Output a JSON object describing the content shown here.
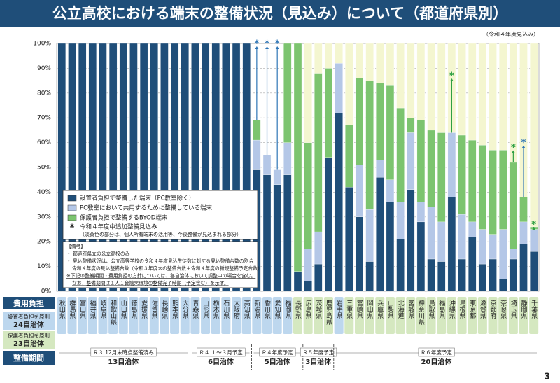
{
  "chart_data": {
    "type": "bar",
    "title": "公立高校における端末の整備状況（見込み）について（都道府県別）",
    "subtitle": "（令和４年度見込み）",
    "categories": [
      "秋田県",
      "群馬県",
      "富山県",
      "福井県",
      "岐阜県",
      "和歌山県",
      "山口県",
      "徳島県",
      "愛媛県",
      "佐賀県",
      "長崎県",
      "熊本県",
      "大分県",
      "青森県",
      "山形県",
      "栃木県",
      "石川県",
      "大阪府",
      "高知県",
      "新潟県",
      "香川県",
      "愛知県",
      "福岡県",
      "長野県",
      "広島県",
      "茨城県",
      "鹿児島県",
      "岩手県",
      "三重県",
      "宮崎県",
      "岡山県",
      "兵庫県",
      "山梨県",
      "北海道",
      "宮城県",
      "神奈川県",
      "鳥取県",
      "福島県",
      "沖縄県",
      "島根県",
      "東京都",
      "滋賀県",
      "京都府",
      "奈良県",
      "埼玉県",
      "静岡県",
      "千葉県"
    ],
    "series": [
      {
        "name": "設置者負担で整備した端末（PC教室除く）",
        "color": "#1f4e79",
        "values": [
          100,
          100,
          100,
          100,
          100,
          100,
          100,
          100,
          100,
          100,
          100,
          100,
          100,
          100,
          100,
          100,
          100,
          100,
          100,
          49,
          47,
          43,
          47,
          8,
          4,
          11,
          54,
          72,
          42,
          30,
          12,
          46,
          36,
          21,
          41,
          28,
          13,
          12,
          38,
          13,
          22,
          11,
          13,
          5,
          13,
          19,
          16
        ]
      },
      {
        "name": "PC教室において共用するために整備している端末",
        "color": "#b4c7e7",
        "values": [
          0,
          0,
          0,
          0,
          0,
          0,
          0,
          0,
          0,
          0,
          0,
          0,
          0,
          0,
          0,
          0,
          0,
          0,
          0,
          12,
          8,
          6,
          13,
          0,
          13,
          13,
          0,
          20,
          0,
          21,
          21,
          7,
          9,
          15,
          23,
          8,
          21,
          16,
          26,
          18,
          6,
          14,
          10,
          20,
          4,
          9,
          9
        ]
      },
      {
        "name": "保護者負担で整備するBYOD端末",
        "color": "#7cc46f",
        "values": [
          0,
          0,
          0,
          0,
          0,
          0,
          0,
          0,
          0,
          0,
          0,
          0,
          0,
          0,
          0,
          0,
          0,
          0,
          0,
          8,
          0,
          0,
          40,
          92,
          43,
          64,
          36,
          0,
          25,
          35,
          52,
          31,
          38,
          38,
          6,
          33,
          31,
          36,
          0,
          32,
          33,
          34,
          34,
          32,
          35,
          10,
          1
        ]
      },
      {
        "color": "#f4f6d0",
        "values": [
          0,
          0,
          0,
          0,
          0,
          0,
          0,
          0,
          0,
          0,
          0,
          0,
          0,
          0,
          0,
          0,
          0,
          0,
          0,
          0,
          0,
          0,
          0,
          0,
          40,
          12,
          10,
          8,
          33,
          14,
          15,
          16,
          17,
          26,
          30,
          31,
          35,
          36,
          36,
          37,
          39,
          41,
          43,
          43,
          48,
          62,
          74
        ]
      }
    ],
    "marker_values": [
      null,
      null,
      null,
      null,
      null,
      null,
      null,
      null,
      null,
      null,
      null,
      null,
      null,
      null,
      null,
      null,
      null,
      null,
      null,
      100,
      100,
      100,
      null,
      null,
      null,
      null,
      null,
      null,
      null,
      null,
      null,
      null,
      null,
      null,
      null,
      null,
      null,
      null,
      87,
      null,
      null,
      null,
      null,
      null,
      58,
      60,
      27
    ],
    "marker_colors": [
      null,
      null,
      null,
      null,
      null,
      null,
      null,
      null,
      null,
      null,
      null,
      null,
      null,
      null,
      null,
      null,
      null,
      null,
      null,
      "#2e75b6",
      "#2e75b6",
      "#2e75b6",
      null,
      null,
      null,
      null,
      null,
      null,
      null,
      null,
      null,
      null,
      null,
      null,
      null,
      null,
      null,
      null,
      "#2ea043",
      null,
      null,
      null,
      null,
      null,
      "#2ea043",
      "#2e75b6",
      "#2ea043"
    ],
    "marker_symbol": "*",
    "marker_legend": "令和４年度中追加整備見込み",
    "legend_note": "（淡黄色の部分は、個人所有端末の活用等、今後整備が見込まれる部分）",
    "ylim": [
      0,
      100
    ],
    "yticks": [
      {
        "value": 0,
        "label": "0%"
      },
      {
        "value": 10,
        "label": "10%"
      },
      {
        "value": 20,
        "label": "20%"
      },
      {
        "value": 30,
        "label": "30%"
      },
      {
        "value": 40,
        "label": "40%"
      },
      {
        "value": 50,
        "label": "50%"
      },
      {
        "value": 60,
        "label": "60%"
      },
      {
        "value": 70,
        "label": "70%"
      },
      {
        "value": 80,
        "label": "80%"
      },
      {
        "value": 90,
        "label": "90%"
      },
      {
        "value": 100,
        "label": "100%"
      }
    ],
    "grid": true,
    "notes": [
      "【備考】",
      "・ 都道府県立の公立高校のみ",
      "・ 見込整備状況は、公立高等学校の令和４年度見込生徒数に対する見込整備台数の割合",
      "令和４年度の見込整備台数（令和３年度末の整備台数＋令和４年度の新規整備予定台数）",
      "※下記の整備期間・費用負担の方針については、各自治体において調整中の場合を含む。",
      "なお、整備期間は１人１台端末環境の整備完了時期（予定含む）を示す。"
    ],
    "burden_title": "費用負担",
    "burden_colors": [
      "#bdd7ee",
      "#bdd7ee",
      "#bdd7ee",
      "#bdd7ee",
      "#bdd7ee",
      "#bdd7ee",
      "#bdd7ee",
      "#bdd7ee",
      "#bdd7ee",
      "#bdd7ee",
      "#bdd7ee",
      "#bdd7ee",
      "#bdd7ee",
      "#bdd7ee",
      "#bdd7ee",
      "#bdd7ee",
      "#bdd7ee",
      "#bdd7ee",
      "#bdd7ee",
      "#bdd7ee",
      "#bdd7ee",
      "#bdd7ee",
      "#bdd7ee",
      "#d5e8c0",
      "#d5e8c0",
      "#d5e8c0",
      "#d5e8c0",
      "#bdd7ee",
      "#d5e8c0",
      "#d5e8c0",
      "#d5e8c0",
      "#d5e8c0",
      "#d5e8c0",
      "#d5e8c0",
      "#d5e8c0",
      "#d5e8c0",
      "#d5e8c0",
      "#d5e8c0",
      "#d5e8c0",
      "#d5e8c0",
      "#d5e8c0",
      "#d5e8c0",
      "#d5e8c0",
      "#d5e8c0",
      "#d5e8c0",
      "#d5e8c0",
      "#d5e8c0"
    ],
    "burden_groups": [
      {
        "label": "設置者負担を原則",
        "count": {
          "value": 24,
          "label": "24自治体"
        },
        "color": "#bdd7ee"
      },
      {
        "label": "保護者負担を原則",
        "count": {
          "value": 23,
          "label": "23自治体"
        },
        "color": "#d5e8c0"
      }
    ],
    "period_title": "整備期間",
    "periods": [
      {
        "label": "Ｒ３.12月末時点整備済み",
        "count": {
          "value": 13,
          "label": "13自治体"
        }
      },
      {
        "label": "Ｒ４.１～３月予定",
        "count": {
          "value": 6,
          "label": "6自治体"
        }
      },
      {
        "label": "Ｒ４年度予定",
        "count": {
          "value": 5,
          "label": "5自治体"
        }
      },
      {
        "label": "Ｒ５年度予定",
        "count": {
          "value": 3,
          "label": "3自治体"
        }
      },
      {
        "label": "Ｒ６年度予定",
        "count": {
          "value": 20,
          "label": "20自治体"
        }
      }
    ],
    "page_number": "3"
  }
}
